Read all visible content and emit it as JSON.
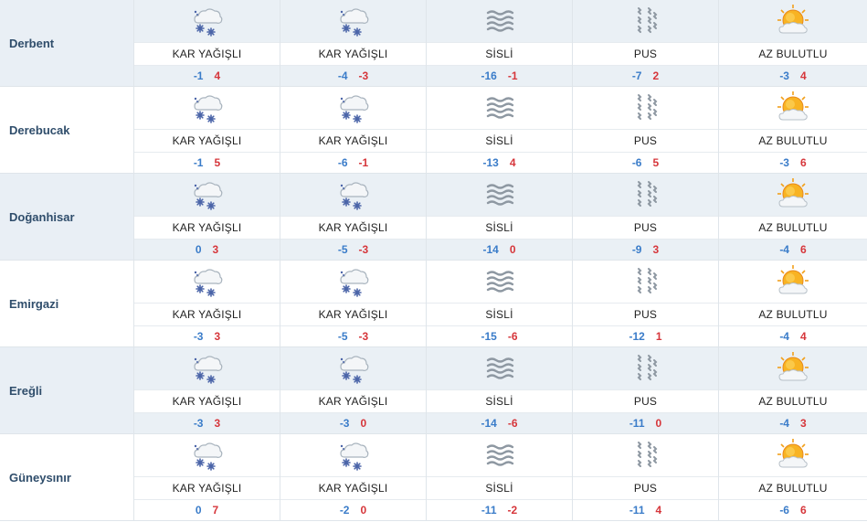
{
  "colors": {
    "min": "#3a7cc9",
    "max": "#d6363b",
    "city": "#2f4d6b",
    "shade": "#eaf0f5"
  },
  "rows": [
    {
      "city": "Derbent",
      "days": [
        {
          "icon": "snow-cloud-icon",
          "label": "KAR YAĞIŞLI",
          "min": "-1",
          "max": "4"
        },
        {
          "icon": "snow-cloud-icon",
          "label": "KAR YAĞIŞLI",
          "min": "-4",
          "max": "-3"
        },
        {
          "icon": "fog-icon",
          "label": "SİSLİ",
          "min": "-16",
          "max": "-1"
        },
        {
          "icon": "haze-icon",
          "label": "PUS",
          "min": "-7",
          "max": "2"
        },
        {
          "icon": "partly-cloudy-sun-icon",
          "label": "AZ BULUTLU",
          "min": "-3",
          "max": "4"
        }
      ]
    },
    {
      "city": "Derebucak",
      "days": [
        {
          "icon": "snow-cloud-icon",
          "label": "KAR YAĞIŞLI",
          "min": "-1",
          "max": "5"
        },
        {
          "icon": "snow-cloud-icon",
          "label": "KAR YAĞIŞLI",
          "min": "-6",
          "max": "-1"
        },
        {
          "icon": "fog-icon",
          "label": "SİSLİ",
          "min": "-13",
          "max": "4"
        },
        {
          "icon": "haze-icon",
          "label": "PUS",
          "min": "-6",
          "max": "5"
        },
        {
          "icon": "partly-cloudy-sun-icon",
          "label": "AZ BULUTLU",
          "min": "-3",
          "max": "6"
        }
      ]
    },
    {
      "city": "Doğanhisar",
      "days": [
        {
          "icon": "snow-cloud-icon",
          "label": "KAR YAĞIŞLI",
          "min": "0",
          "max": "3"
        },
        {
          "icon": "snow-cloud-icon",
          "label": "KAR YAĞIŞLI",
          "min": "-5",
          "max": "-3"
        },
        {
          "icon": "fog-icon",
          "label": "SİSLİ",
          "min": "-14",
          "max": "0"
        },
        {
          "icon": "haze-icon",
          "label": "PUS",
          "min": "-9",
          "max": "3"
        },
        {
          "icon": "partly-cloudy-sun-icon",
          "label": "AZ BULUTLU",
          "min": "-4",
          "max": "6"
        }
      ]
    },
    {
      "city": "Emirgazi",
      "days": [
        {
          "icon": "snow-cloud-icon",
          "label": "KAR YAĞIŞLI",
          "min": "-3",
          "max": "3"
        },
        {
          "icon": "snow-cloud-icon",
          "label": "KAR YAĞIŞLI",
          "min": "-5",
          "max": "-3"
        },
        {
          "icon": "fog-icon",
          "label": "SİSLİ",
          "min": "-15",
          "max": "-6"
        },
        {
          "icon": "haze-icon",
          "label": "PUS",
          "min": "-12",
          "max": "1"
        },
        {
          "icon": "partly-cloudy-sun-icon",
          "label": "AZ BULUTLU",
          "min": "-4",
          "max": "4"
        }
      ]
    },
    {
      "city": "Ereğli",
      "days": [
        {
          "icon": "snow-cloud-icon",
          "label": "KAR YAĞIŞLI",
          "min": "-3",
          "max": "3"
        },
        {
          "icon": "snow-cloud-icon",
          "label": "KAR YAĞIŞLI",
          "min": "-3",
          "max": "0"
        },
        {
          "icon": "fog-icon",
          "label": "SİSLİ",
          "min": "-14",
          "max": "-6"
        },
        {
          "icon": "haze-icon",
          "label": "PUS",
          "min": "-11",
          "max": "0"
        },
        {
          "icon": "partly-cloudy-sun-icon",
          "label": "AZ BULUTLU",
          "min": "-4",
          "max": "3"
        }
      ]
    },
    {
      "city": "Güneysınır",
      "days": [
        {
          "icon": "snow-cloud-icon",
          "label": "KAR YAĞIŞLI",
          "min": "0",
          "max": "7"
        },
        {
          "icon": "snow-cloud-icon",
          "label": "KAR YAĞIŞLI",
          "min": "-2",
          "max": "0"
        },
        {
          "icon": "fog-icon",
          "label": "SİSLİ",
          "min": "-11",
          "max": "-2"
        },
        {
          "icon": "haze-icon",
          "label": "PUS",
          "min": "-11",
          "max": "4"
        },
        {
          "icon": "partly-cloudy-sun-icon",
          "label": "AZ BULUTLU",
          "min": "-6",
          "max": "6"
        }
      ]
    }
  ]
}
